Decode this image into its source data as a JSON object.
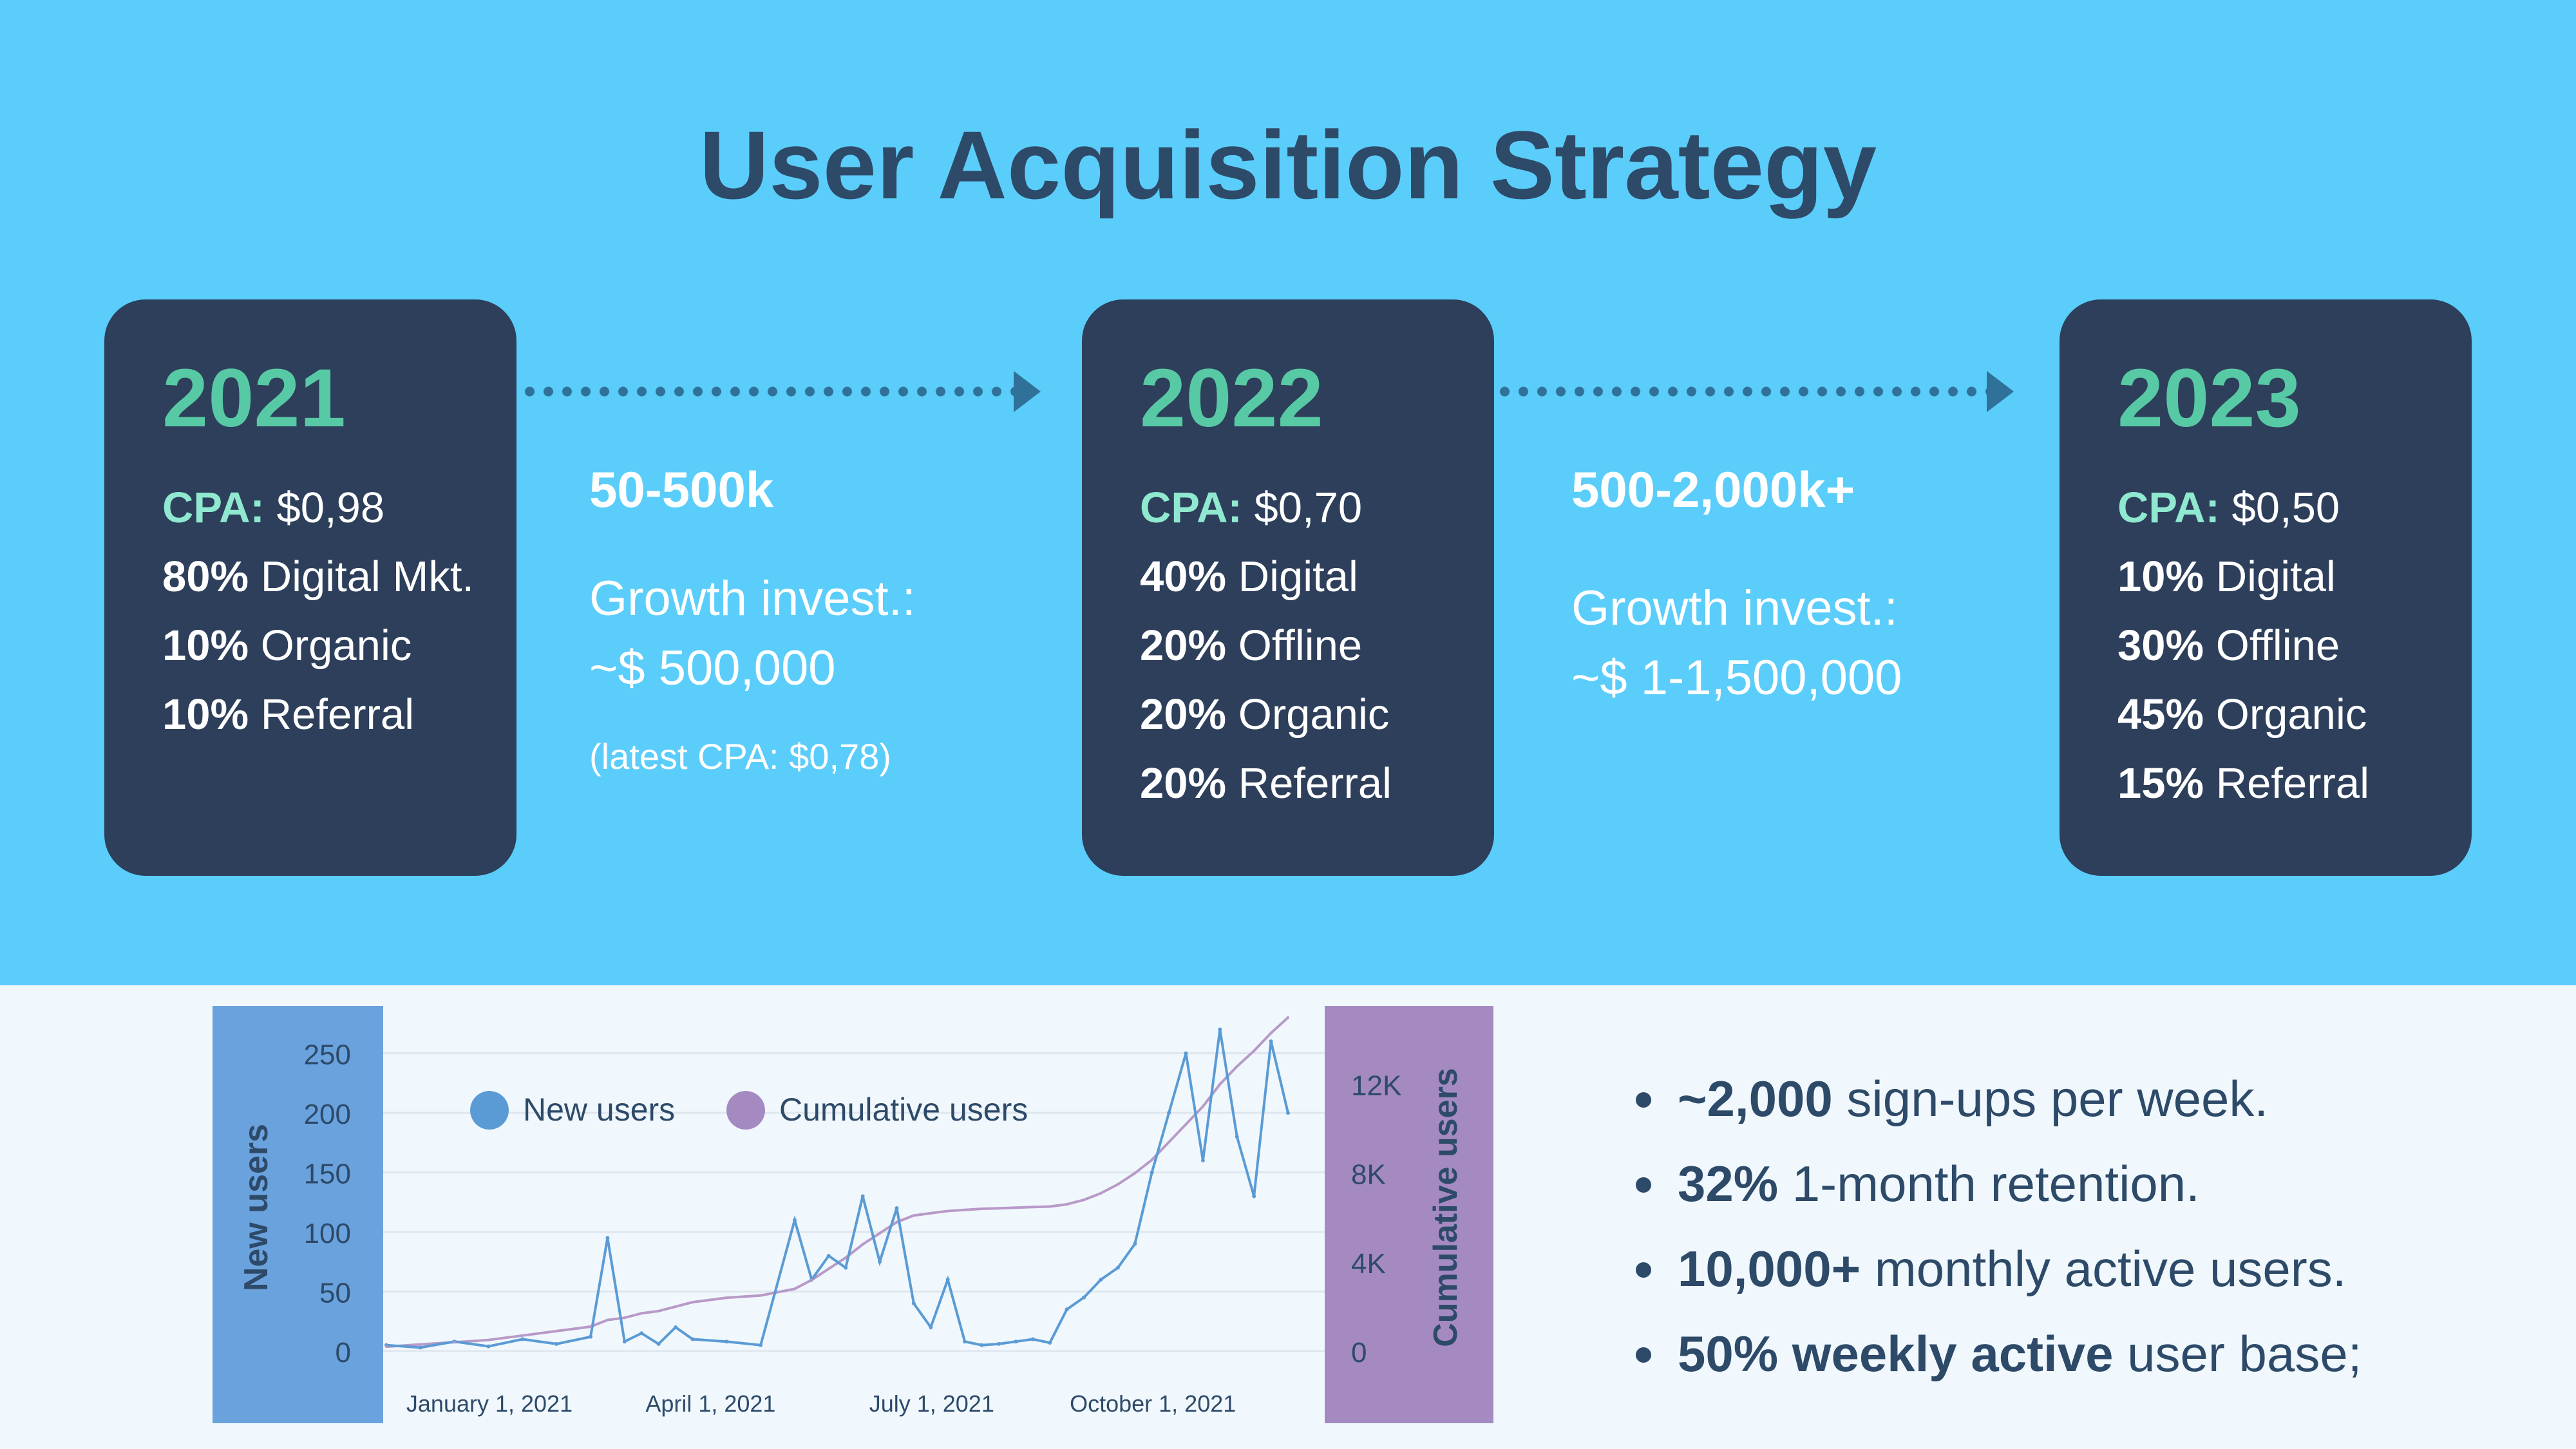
{
  "title": "User Acquisition Strategy",
  "colors": {
    "accent_green": "#58c9a5",
    "card_bg": "#2d3f5b",
    "top_bg": "#5bcdfa",
    "new_users": "#5b9bd5",
    "cumulative_users": "#a58ac2"
  },
  "cards": [
    {
      "year": "2021",
      "cpa_label": "CPA:",
      "cpa_value": "$0,98",
      "lines": [
        {
          "pct": "80%",
          "label": "Digital Mkt."
        },
        {
          "pct": "10%",
          "label": "Organic"
        },
        {
          "pct": "10%",
          "label": "Referral"
        }
      ]
    },
    {
      "year": "2022",
      "cpa_label": "CPA:",
      "cpa_value": "$0,70",
      "lines": [
        {
          "pct": "40%",
          "label": "Digital"
        },
        {
          "pct": "20%",
          "label": "Offline"
        },
        {
          "pct": "20%",
          "label": "Organic"
        },
        {
          "pct": "20%",
          "label": "Referral"
        }
      ]
    },
    {
      "year": "2023",
      "cpa_label": "CPA:",
      "cpa_value": "$0,50",
      "lines": [
        {
          "pct": "10%",
          "label": "Digital"
        },
        {
          "pct": "30%",
          "label": "Offline"
        },
        {
          "pct": "45%",
          "label": "Organic"
        },
        {
          "pct": "15%",
          "label": "Referral"
        }
      ]
    }
  ],
  "transitions": [
    {
      "range": "50-500k",
      "invest_label": "Growth invest.:",
      "invest_value": "~$ 500,000",
      "note": "(latest CPA: $0,78)"
    },
    {
      "range": "500-2,000k+",
      "invest_label": "Growth invest.:",
      "invest_value": "~$ 1-1,500,000"
    }
  ],
  "bullets": [
    {
      "bold": "~2,000",
      "text": " sign-ups per week."
    },
    {
      "bold": "32%",
      "text": " 1-month retention."
    },
    {
      "bold": "10,000+",
      "text": " monthly active users."
    },
    {
      "bold": "50% weekly active",
      "text": " user base;"
    }
  ],
  "chart_data": {
    "type": "line",
    "title": "",
    "ylabel_left": "New users",
    "ylabel_right": "Cumulative users",
    "legend": [
      "New users",
      "Cumulative users"
    ],
    "legend_placement": "top-left",
    "y_left_ticks": [
      "250",
      "200",
      "150",
      "100",
      "50",
      "0"
    ],
    "y_right_ticks": [
      "12K",
      "8K",
      "4K",
      "0"
    ],
    "x_ticks": [
      "January 1, 2021",
      "April 1, 2021",
      "July 1, 2021",
      "October 1, 2021"
    ],
    "ylim_left": [
      0,
      280
    ],
    "ylim_right": [
      0,
      15000
    ],
    "grid": true,
    "x_week_index": [
      0,
      2,
      4,
      6,
      8,
      10,
      12,
      13,
      14,
      15,
      16,
      17,
      18,
      20,
      22,
      24,
      25,
      26,
      27,
      28,
      29,
      30,
      31,
      32,
      33,
      34,
      35,
      36,
      37,
      38,
      39,
      40,
      41,
      42,
      43,
      44,
      45,
      46,
      47,
      48,
      49,
      50,
      51,
      52,
      53
    ],
    "series": [
      {
        "name": "New users",
        "values": [
          5,
          3,
          8,
          4,
          10,
          6,
          12,
          95,
          8,
          15,
          6,
          20,
          10,
          8,
          5,
          110,
          60,
          80,
          70,
          130,
          75,
          120,
          40,
          20,
          60,
          8,
          5,
          6,
          8,
          10,
          7,
          35,
          45,
          60,
          70,
          90,
          150,
          200,
          250,
          160,
          270,
          180,
          130,
          260,
          200
        ]
      },
      {
        "name": "Cumulative users",
        "values": [
          200,
          300,
          400,
          500,
          700,
          900,
          1100,
          1400,
          1500,
          1700,
          1800,
          2000,
          2200,
          2400,
          2500,
          2800,
          3200,
          3700,
          4200,
          4800,
          5300,
          5800,
          6100,
          6200,
          6300,
          6350,
          6400,
          6420,
          6450,
          6480,
          6500,
          6600,
          6800,
          7100,
          7500,
          8000,
          8600,
          9400,
          10200,
          11000,
          12000,
          12800,
          13500,
          14300,
          15000
        ]
      }
    ]
  }
}
